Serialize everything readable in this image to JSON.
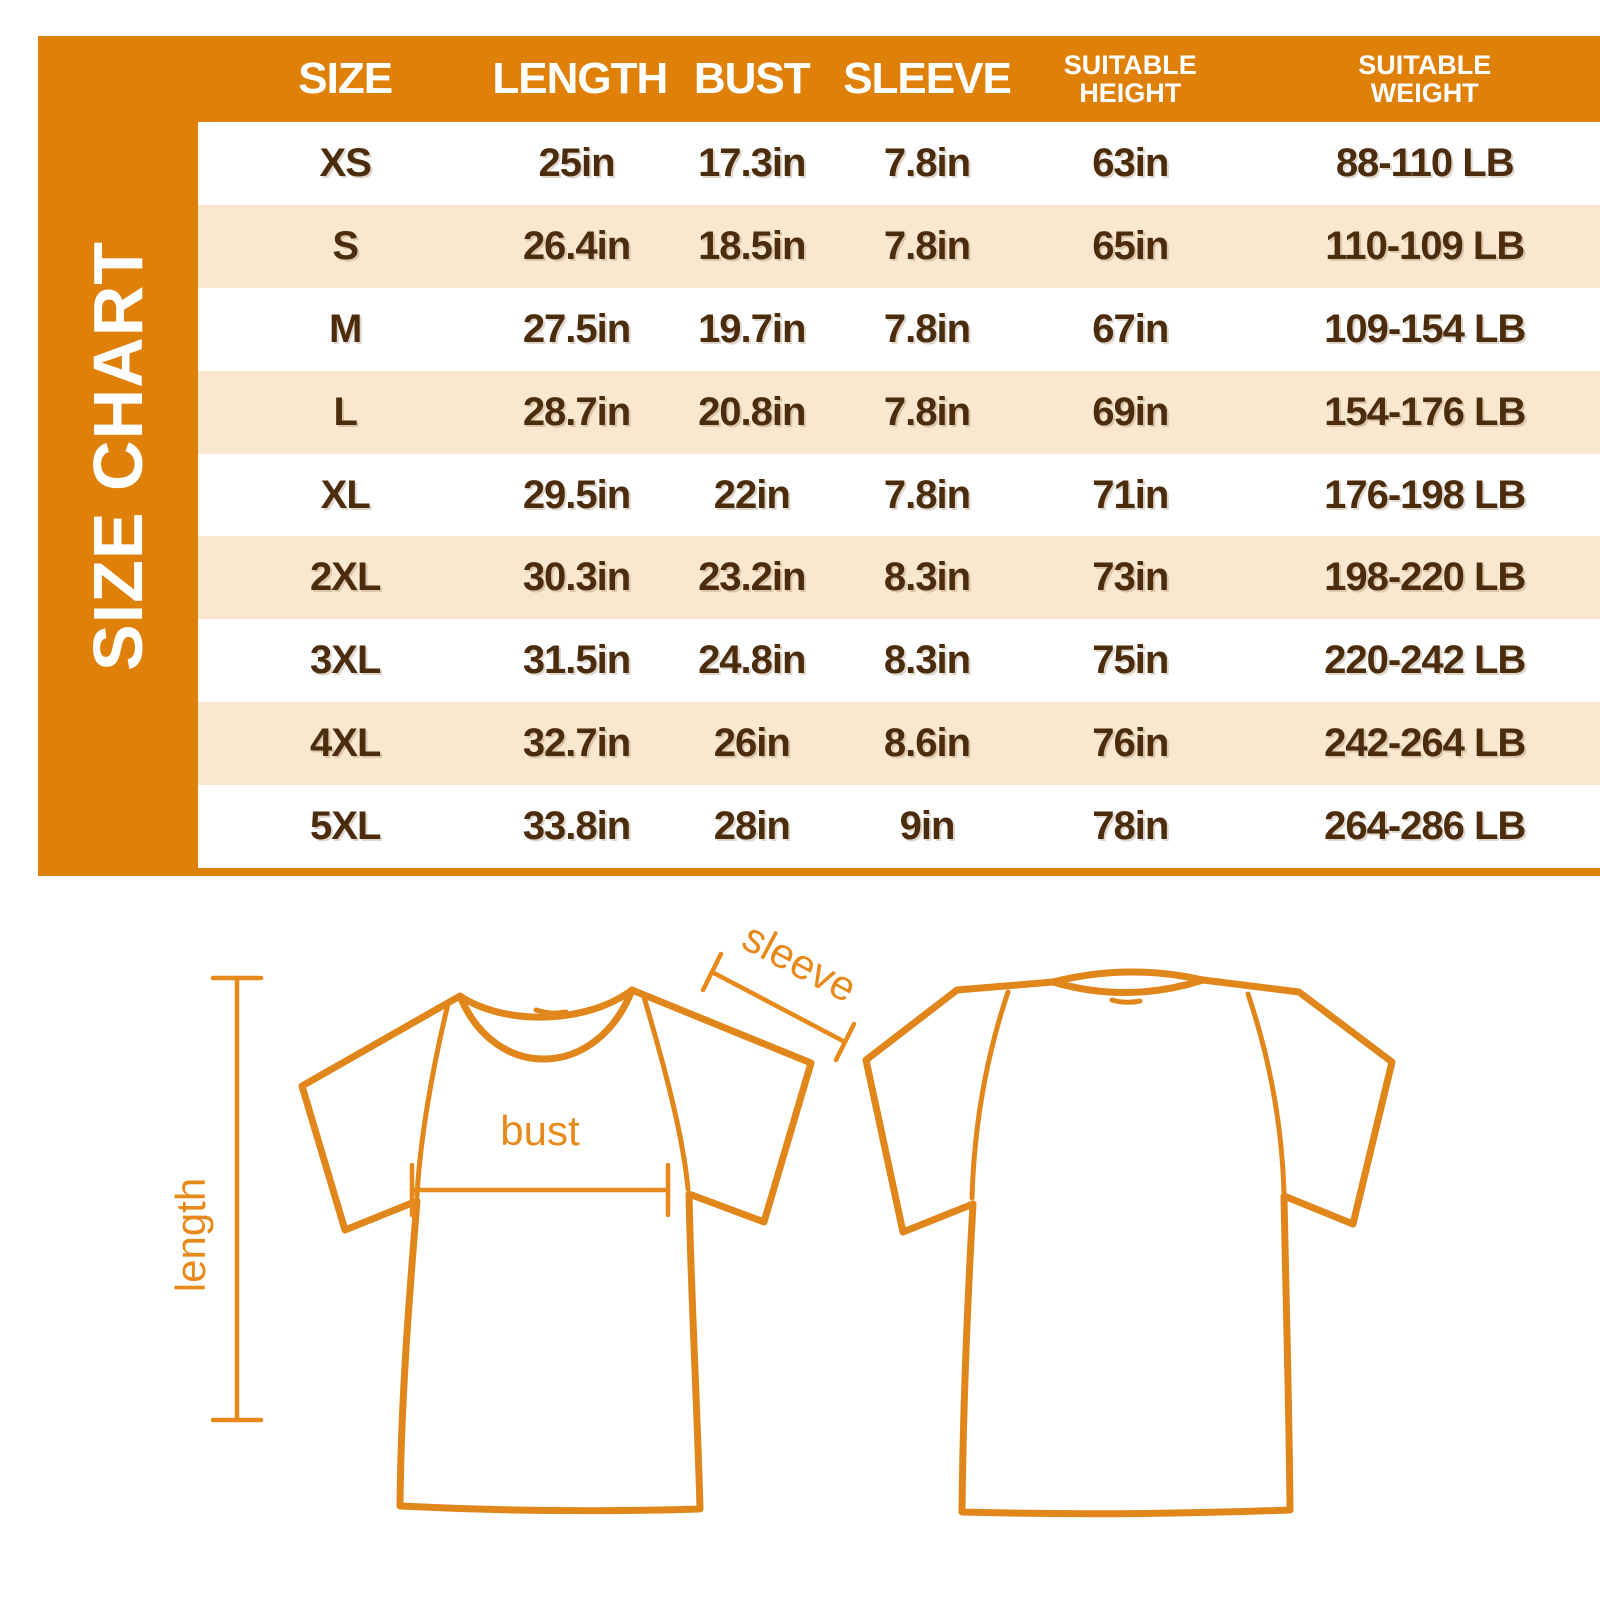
{
  "sidebar": {
    "title": "SIZE CHART"
  },
  "colors": {
    "orange": "#DF8109",
    "row_cream": "#F9E7CF",
    "text_brown": "#4B2D0D",
    "diagram_orange": "#E8891B",
    "header_text": "#FFFFFF"
  },
  "table": {
    "headers": [
      {
        "key": "size",
        "line1": "SIZE",
        "line2": ""
      },
      {
        "key": "length",
        "line1": "LENGTH",
        "line2": ""
      },
      {
        "key": "bust",
        "line1": "BUST",
        "line2": ""
      },
      {
        "key": "sleeve",
        "line1": "SLEEVE",
        "line2": ""
      },
      {
        "key": "height",
        "line1": "SUITABLE",
        "line2": "HEIGHT"
      },
      {
        "key": "weight",
        "line1": "SUITABLE",
        "line2": "WEIGHT"
      }
    ],
    "rows": [
      {
        "size": "XS",
        "length": "25in",
        "bust": "17.3in",
        "sleeve": "7.8in",
        "height": "63in",
        "weight": "88-110 LB"
      },
      {
        "size": "S",
        "length": "26.4in",
        "bust": "18.5in",
        "sleeve": "7.8in",
        "height": "65in",
        "weight": "110-109 LB"
      },
      {
        "size": "M",
        "length": "27.5in",
        "bust": "19.7in",
        "sleeve": "7.8in",
        "height": "67in",
        "weight": "109-154 LB"
      },
      {
        "size": "L",
        "length": "28.7in",
        "bust": "20.8in",
        "sleeve": "7.8in",
        "height": "69in",
        "weight": "154-176 LB"
      },
      {
        "size": "XL",
        "length": "29.5in",
        "bust": "22in",
        "sleeve": "7.8in",
        "height": "71in",
        "weight": "176-198 LB"
      },
      {
        "size": "2XL",
        "length": "30.3in",
        "bust": "23.2in",
        "sleeve": "8.3in",
        "height": "73in",
        "weight": "198-220 LB"
      },
      {
        "size": "3XL",
        "length": "31.5in",
        "bust": "24.8in",
        "sleeve": "8.3in",
        "height": "75in",
        "weight": "220-242 LB"
      },
      {
        "size": "4XL",
        "length": "32.7in",
        "bust": "26in",
        "sleeve": "8.6in",
        "height": "76in",
        "weight": "242-264 LB"
      },
      {
        "size": "5XL",
        "length": "33.8in",
        "bust": "28in",
        "sleeve": "9in",
        "height": "78in",
        "weight": "264-286 LB"
      }
    ]
  },
  "diagram": {
    "labels": {
      "sleeve": "sleeve",
      "bust": "bust",
      "length": "length"
    }
  },
  "chart_data": {
    "type": "table",
    "title": "SIZE CHART",
    "columns": [
      "SIZE",
      "LENGTH",
      "BUST",
      "SLEEVE",
      "SUITABLE HEIGHT",
      "SUITABLE WEIGHT"
    ],
    "rows": [
      [
        "XS",
        "25in",
        "17.3in",
        "7.8in",
        "63in",
        "88-110 LB"
      ],
      [
        "S",
        "26.4in",
        "18.5in",
        "7.8in",
        "65in",
        "110-109 LB"
      ],
      [
        "M",
        "27.5in",
        "19.7in",
        "7.8in",
        "67in",
        "109-154 LB"
      ],
      [
        "L",
        "28.7in",
        "20.8in",
        "7.8in",
        "69in",
        "154-176 LB"
      ],
      [
        "XL",
        "29.5in",
        "22in",
        "7.8in",
        "71in",
        "176-198 LB"
      ],
      [
        "2XL",
        "30.3in",
        "23.2in",
        "8.3in",
        "73in",
        "198-220 LB"
      ],
      [
        "3XL",
        "31.5in",
        "24.8in",
        "8.3in",
        "75in",
        "220-242 LB"
      ],
      [
        "4XL",
        "32.7in",
        "26in",
        "8.6in",
        "76in",
        "242-264 LB"
      ],
      [
        "5XL",
        "33.8in",
        "28in",
        "9in",
        "78in",
        "264-286 LB"
      ]
    ]
  }
}
